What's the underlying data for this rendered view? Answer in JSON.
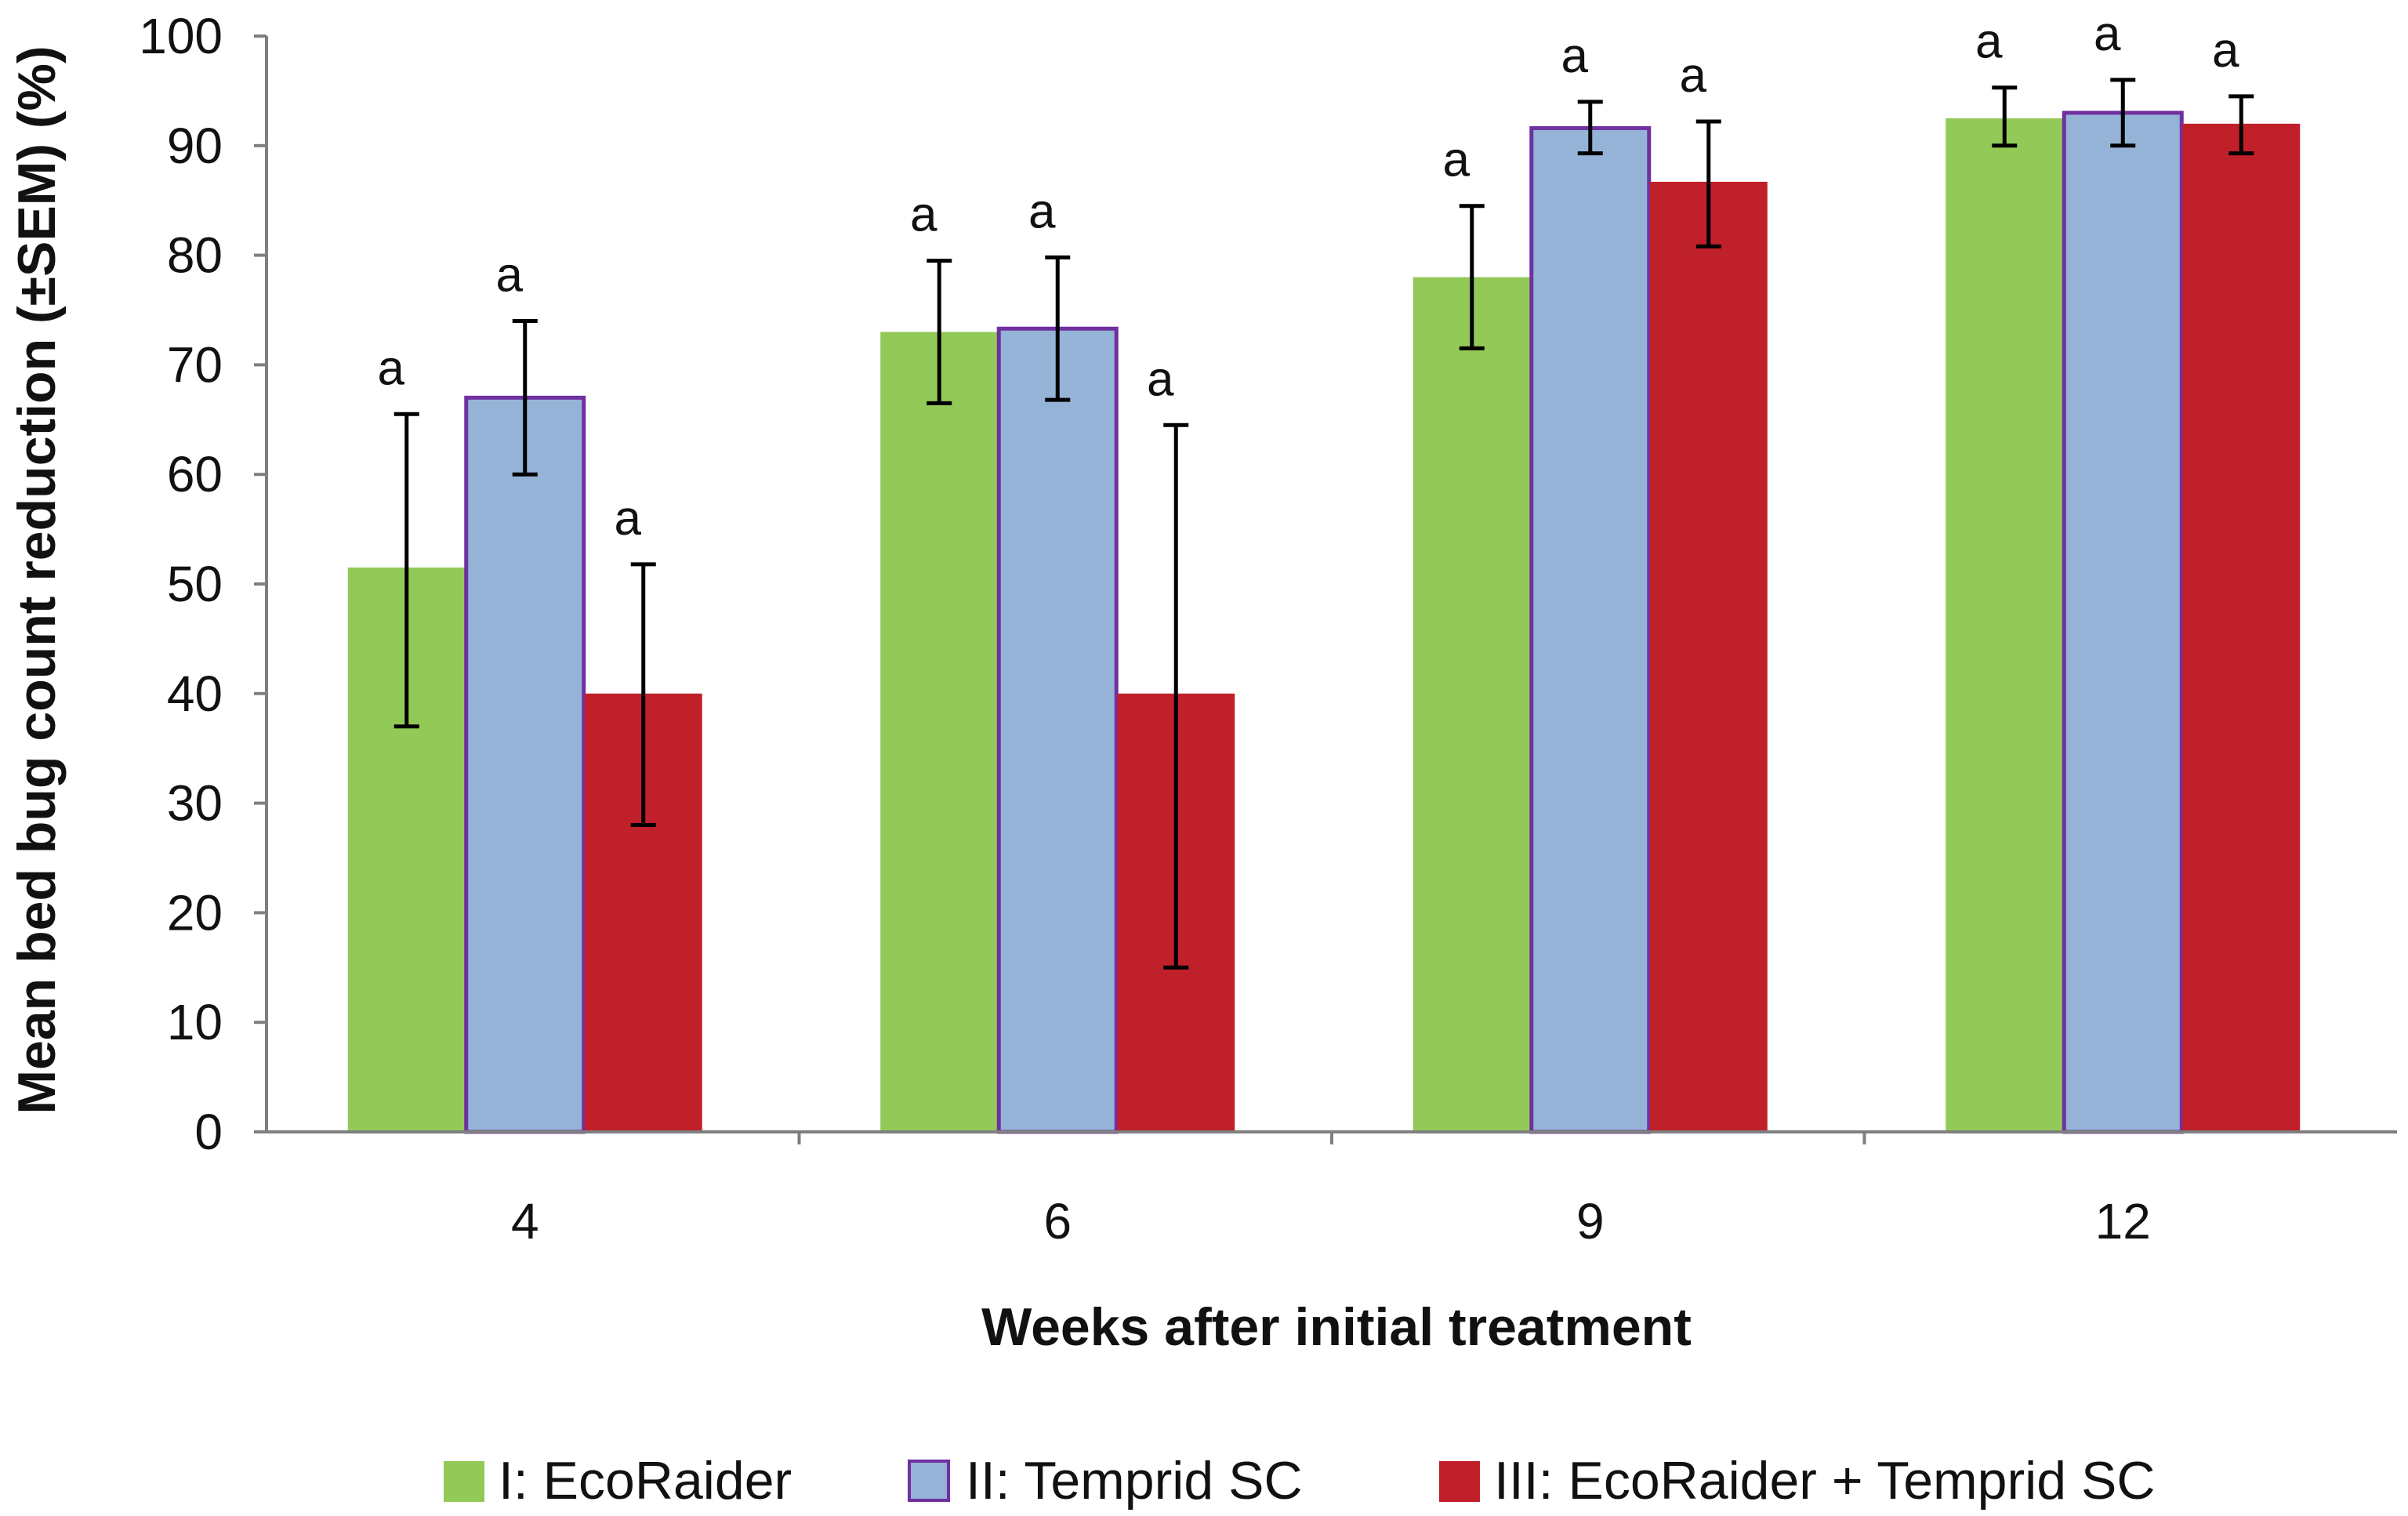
{
  "chart_data": {
    "type": "bar",
    "title": "",
    "xlabel": "Weeks after initial treatment",
    "ylabel": "Mean bed bug count reduction (±SEM) (%)",
    "ylim": [
      0,
      100
    ],
    "yticks": [
      "0",
      "10",
      "20",
      "30",
      "40",
      "50",
      "60",
      "70",
      "80",
      "90",
      "100"
    ],
    "categories": [
      "4",
      "6",
      "9",
      "12"
    ],
    "legend_position": "bottom",
    "series": [
      {
        "name": "I: EcoRaider",
        "color": "#92c957",
        "values": [
          51.5,
          73,
          78,
          92.5
        ],
        "err_low": [
          37,
          66.5,
          71.5,
          90
        ],
        "err_high": [
          65.5,
          79.5,
          84.5,
          95.3
        ],
        "labels": [
          "a",
          "a",
          "a",
          "a"
        ]
      },
      {
        "name": "II: Temprid SC",
        "color": "#95b3d7",
        "outline": "#7030a0",
        "values": [
          67,
          73.3,
          91.6,
          93
        ],
        "err_low": [
          60,
          66.8,
          89.3,
          90
        ],
        "err_high": [
          74,
          79.8,
          94,
          96
        ],
        "labels": [
          "a",
          "a",
          "a",
          "a"
        ]
      },
      {
        "name": "III: EcoRaider + Temprid SC",
        "color": "#c0202a",
        "values": [
          40,
          40,
          86.7,
          92
        ],
        "err_low": [
          28,
          15,
          80.8,
          89.3
        ],
        "err_high": [
          51.8,
          64.5,
          92.2,
          94.5
        ],
        "labels": [
          "a",
          "a",
          "a",
          "a"
        ]
      }
    ]
  }
}
